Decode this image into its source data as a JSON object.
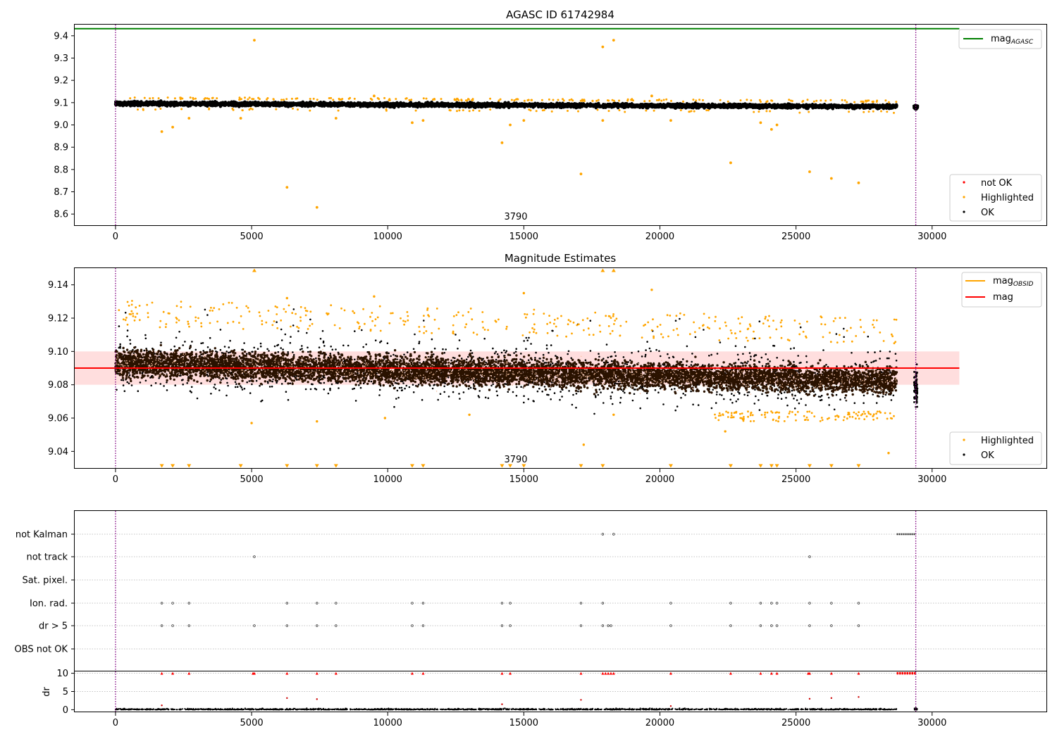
{
  "figure": {
    "title_top": "AGASC ID 61742984",
    "title_mid": "Magnitude Estimates",
    "obsid_label": "3790"
  },
  "colors": {
    "ok": "#000000",
    "highlighted": "#ffa500",
    "not_ok": "#ff0000",
    "mag_agasc": "#008000",
    "mag_obsid": "#ffa500",
    "mag": "#ff0000",
    "band": "#ffd0d0",
    "band_dense": "#f6c1a0",
    "obs_boundary": "#800080"
  },
  "legends": {
    "top_line": {
      "main": "mag",
      "sub": "AGASC"
    },
    "top_points": [
      "not OK",
      "Highlighted",
      "OK"
    ],
    "mid_lines": [
      {
        "main": "mag",
        "sub": "OBSID"
      },
      {
        "main": "mag",
        "sub": ""
      }
    ],
    "mid_points": [
      "Highlighted",
      "OK"
    ]
  },
  "chart_data": [
    {
      "type": "scatter",
      "title": "AGASC ID 61742984",
      "xlim": [
        -1500,
        34200
      ],
      "ylim": [
        8.55,
        9.45
      ],
      "x_ticks": [
        0,
        5000,
        10000,
        15000,
        20000,
        25000,
        30000
      ],
      "y_ticks": [
        8.6,
        8.7,
        8.8,
        8.9,
        9.0,
        9.1,
        9.2,
        9.3,
        9.4
      ],
      "y_tick_labels": [
        "8.6",
        "8.7",
        "8.8",
        "8.9",
        "9.0",
        "9.1",
        "9.2",
        "9.3",
        "9.4"
      ],
      "mag_agasc": 9.432,
      "mag_agasc_x_end": 31000,
      "obs_boundaries": [
        0,
        29400
      ],
      "ok_band": {
        "x_start": 0,
        "x_end": 28700,
        "center_start": 9.096,
        "center_end": 9.082,
        "half_width": 0.012,
        "group_x": 29400,
        "group_center": 9.08
      },
      "highlighted": [
        [
          5100,
          9.38
        ],
        [
          17900,
          9.35
        ],
        [
          18300,
          9.38
        ],
        [
          1700,
          8.97
        ],
        [
          2100,
          8.99
        ],
        [
          2700,
          9.03
        ],
        [
          4600,
          9.03
        ],
        [
          6300,
          8.72
        ],
        [
          7400,
          8.63
        ],
        [
          8100,
          9.03
        ],
        [
          10900,
          9.01
        ],
        [
          11300,
          9.02
        ],
        [
          14200,
          8.92
        ],
        [
          14500,
          9.0
        ],
        [
          15000,
          9.02
        ],
        [
          17100,
          8.78
        ],
        [
          17900,
          9.02
        ],
        [
          20400,
          9.02
        ],
        [
          22600,
          8.83
        ],
        [
          23700,
          9.01
        ],
        [
          24100,
          8.98
        ],
        [
          24300,
          9.0
        ],
        [
          25500,
          8.79
        ],
        [
          26300,
          8.76
        ],
        [
          27300,
          8.74
        ],
        [
          19700,
          9.13
        ],
        [
          9500,
          9.13
        ]
      ]
    },
    {
      "type": "scatter",
      "title": "Magnitude Estimates",
      "xlim": [
        -1500,
        34200
      ],
      "ylim": [
        9.03,
        9.15
      ],
      "x_ticks": [
        0,
        5000,
        10000,
        15000,
        20000,
        25000,
        30000
      ],
      "y_ticks": [
        9.04,
        9.06,
        9.08,
        9.1,
        9.12,
        9.14
      ],
      "y_tick_labels": [
        "9.04",
        "9.06",
        "9.08",
        "9.10",
        "9.12",
        "9.14"
      ],
      "mag": 9.09,
      "mag_band": [
        9.08,
        9.1
      ],
      "mag_line_x": [
        -1500,
        31000
      ],
      "mag_obsid": {
        "x": [
          0,
          28700
        ],
        "y": 9.09
      },
      "obs_boundaries": [
        0,
        29400
      ],
      "cloud": {
        "x_start": 0,
        "x_end": 28700,
        "center_start": 9.093,
        "center_end": 9.082,
        "inner_half_width": 0.01,
        "outer_half_width": 0.022
      },
      "highlighted": [
        [
          5000,
          9.057
        ],
        [
          7400,
          9.058
        ],
        [
          9900,
          9.06
        ],
        [
          13000,
          9.062
        ],
        [
          17200,
          9.044
        ],
        [
          18300,
          9.062
        ],
        [
          22400,
          9.052
        ],
        [
          28400,
          9.039
        ],
        [
          19700,
          9.137
        ],
        [
          15000,
          9.135
        ],
        [
          9500,
          9.133
        ],
        [
          6300,
          9.132
        ]
      ],
      "overflow_up": [
        5100,
        17900,
        18300
      ],
      "overflow_down": [
        1700,
        2100,
        2700,
        4600,
        6300,
        7400,
        8100,
        10900,
        11300,
        14200,
        14500,
        15000,
        17100,
        17900,
        20400,
        22600,
        23700,
        24100,
        24300,
        25500,
        26300,
        27300
      ]
    },
    {
      "type": "scatter",
      "title": "",
      "xlim": [
        -1500,
        34200
      ],
      "x_ticks": [
        0,
        5000,
        10000,
        15000,
        20000,
        25000,
        30000
      ],
      "flag_rows": [
        "not Kalman",
        "not track",
        "Sat. pixel.",
        "Ion. rad.",
        "dr > 5",
        "OBS not OK"
      ],
      "flags": {
        "not Kalman": [
          17900,
          18300
        ],
        "not track": [
          5100,
          25500
        ],
        "Sat. pixel.": [],
        "Ion. rad.": [
          1700,
          2100,
          2700,
          6300,
          7400,
          8100,
          10900,
          11300,
          14200,
          14500,
          17100,
          17900,
          20400,
          22600,
          23700,
          24100,
          24300,
          25500,
          26300,
          27300
        ],
        "dr > 5": [
          1700,
          2100,
          2700,
          5100,
          6300,
          7400,
          8100,
          10900,
          11300,
          14200,
          14500,
          17100,
          17900,
          18100,
          18200,
          20400,
          22600,
          23700,
          24100,
          24300,
          25500,
          26300,
          27300
        ],
        "OBS not OK": []
      },
      "not_kalman_range": [
        28700,
        29400
      ],
      "obs_boundaries": [
        0,
        29400
      ]
    },
    {
      "type": "scatter",
      "title": "",
      "ylabel": "dr",
      "xlim": [
        -1500,
        34200
      ],
      "ylim": [
        -0.5,
        10.5
      ],
      "x_ticks": [
        0,
        5000,
        10000,
        15000,
        20000,
        25000,
        30000
      ],
      "x_tick_labels": [
        "0",
        "5000",
        "10000",
        "15000",
        "20000",
        "25000",
        "30000"
      ],
      "y_ticks": [
        0,
        5,
        10
      ],
      "y_tick_labels": [
        "0",
        "5",
        "10"
      ],
      "dr_capped": [
        1700,
        2100,
        2700,
        5050,
        5100,
        6300,
        7400,
        8100,
        10900,
        11300,
        14200,
        14500,
        17100,
        17900,
        18000,
        18100,
        18200,
        18300,
        20400,
        22600,
        23700,
        24100,
        24300,
        25450,
        25500,
        26300,
        27300
      ],
      "dr_capped_range": [
        28700,
        29400
      ],
      "dr_moderate": [
        [
          6300,
          3.2
        ],
        [
          7400,
          2.9
        ],
        [
          17100,
          2.7
        ],
        [
          25500,
          3.0
        ],
        [
          26300,
          3.2
        ],
        [
          27300,
          3.5
        ],
        [
          1700,
          1.2
        ],
        [
          14200,
          1.5
        ],
        [
          20400,
          1.0
        ]
      ],
      "obs_boundaries": [
        0,
        29400
      ]
    }
  ]
}
